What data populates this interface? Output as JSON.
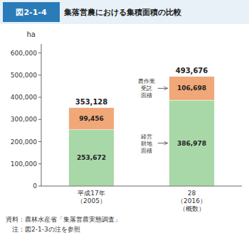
{
  "chart_data": {
    "type": "bar",
    "stacked": true,
    "data_labels": true,
    "grid": false,
    "figure_label": "図2-1-4",
    "title": "集落営農における集積面積の比較",
    "ylabel": "ha",
    "categories": [
      "平成17年\n（2005）",
      "28\n（2016）\n（概数）"
    ],
    "series": [
      {
        "color": "#a8d8a8",
        "values": [
          253672,
          386978
        ],
        "value_labels": [
          "253,672",
          "386,978"
        ]
      },
      {
        "color": "#f0a878",
        "values": [
          99456,
          106698
        ],
        "value_labels": [
          "99,456",
          "106,698"
        ]
      }
    ],
    "totals": [
      353128,
      493676
    ],
    "total_labels": [
      "353,128",
      "493,676"
    ],
    "ylim": [
      0,
      640000
    ],
    "yticks": [
      0,
      {
        "value": 100000,
        "label": "100,000"
      },
      {
        "value": 200000,
        "label": "200,000"
      },
      {
        "value": 300000,
        "label": "300,000"
      },
      {
        "value": 400000,
        "label": "400,000"
      },
      {
        "value": 500000,
        "label": "500,000"
      },
      {
        "value": 600000,
        "label": "600,000"
      }
    ],
    "annotations": [
      {
        "text": "農作業\n受託\n面積",
        "series": 1,
        "category": 1
      },
      {
        "text": "経営\n耕地\n面積",
        "series": 0,
        "category": 1
      }
    ],
    "notes": [
      "資料：農林水産省「集落営農実態調査」",
      "　注：図2-1-3の注を参照"
    ]
  }
}
